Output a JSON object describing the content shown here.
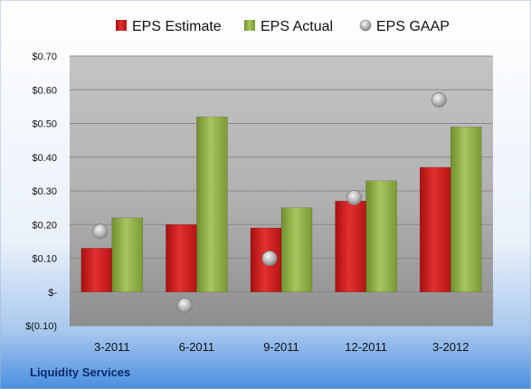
{
  "chart_data": {
    "type": "bar",
    "title": "",
    "source_label": "Liquidity Services",
    "categories": [
      "3-2011",
      "6-2011",
      "9-2011",
      "12-2011",
      "3-2012"
    ],
    "series": [
      {
        "name": "EPS Estimate",
        "kind": "bar",
        "color": "#d01c1c",
        "values": [
          0.13,
          0.2,
          0.19,
          0.27,
          0.37
        ]
      },
      {
        "name": "EPS Actual",
        "kind": "bar",
        "color": "#8fb34a",
        "values": [
          0.22,
          0.52,
          0.25,
          0.33,
          0.49
        ]
      },
      {
        "name": "EPS GAAP",
        "kind": "scatter",
        "color": "#b8b8b8",
        "values": [
          0.18,
          -0.04,
          0.1,
          0.28,
          0.57
        ]
      }
    ],
    "ylim": [
      -0.1,
      0.7
    ],
    "yticks": [
      {
        "value": 0.7,
        "label": "$0.70"
      },
      {
        "value": 0.6,
        "label": "$0.60"
      },
      {
        "value": 0.5,
        "label": "$0.50"
      },
      {
        "value": 0.4,
        "label": "$0.40"
      },
      {
        "value": 0.3,
        "label": "$0.30"
      },
      {
        "value": 0.2,
        "label": "$0.20"
      },
      {
        "value": 0.1,
        "label": "$0.10"
      },
      {
        "value": 0.0,
        "label": "$-"
      },
      {
        "value": -0.1,
        "label": "$(0.10)"
      }
    ],
    "legend_position": "top",
    "grid": true
  }
}
